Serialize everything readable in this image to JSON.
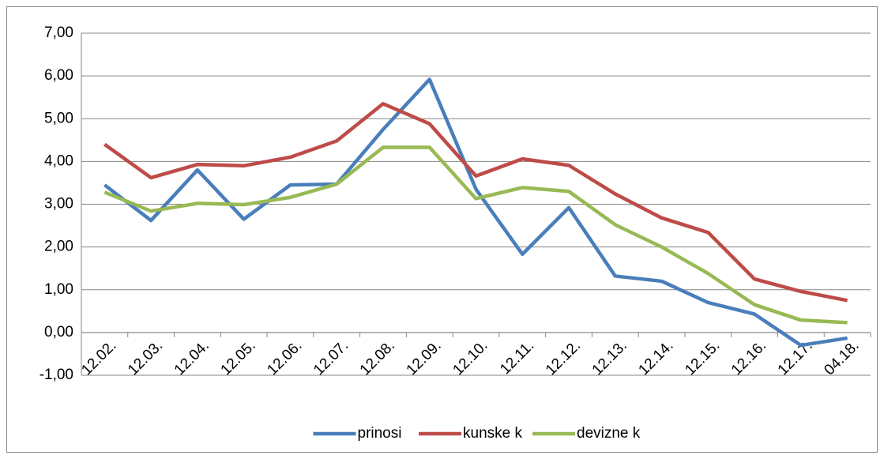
{
  "chart_data": {
    "type": "line",
    "categories": [
      "12.02.",
      "12.03.",
      "12.04.",
      "12.05.",
      "12.06.",
      "12.07.",
      "12.08.",
      "12.09.",
      "12.10.",
      "12.11.",
      "12.12.",
      "12.13.",
      "12.14.",
      "12.15.",
      "12.16.",
      "12.17.",
      "04.18."
    ],
    "series": [
      {
        "name": "prinosi",
        "color": "#4a7ebb",
        "values": [
          3.45,
          2.62,
          3.8,
          2.65,
          3.45,
          3.47,
          4.75,
          5.92,
          3.35,
          1.83,
          2.92,
          1.32,
          1.2,
          0.7,
          0.43,
          -0.3,
          -0.13
        ]
      },
      {
        "name": "kunske k",
        "color": "#be4b48",
        "values": [
          4.4,
          3.62,
          3.93,
          3.9,
          4.1,
          4.48,
          5.35,
          4.88,
          3.66,
          4.06,
          3.91,
          3.24,
          2.68,
          2.34,
          1.25,
          0.96,
          0.75
        ]
      },
      {
        "name": "devizne k",
        "color": "#98b954",
        "values": [
          3.28,
          2.84,
          3.02,
          2.99,
          3.16,
          3.47,
          4.33,
          4.33,
          3.13,
          3.39,
          3.3,
          2.52,
          2.0,
          1.38,
          0.65,
          0.29,
          0.23
        ]
      }
    ],
    "ylim": [
      -1,
      7
    ],
    "yticks": [
      {
        "value": -1,
        "label": "-1,00"
      },
      {
        "value": 0,
        "label": "0,00"
      },
      {
        "value": 1,
        "label": "1,00"
      },
      {
        "value": 2,
        "label": "2,00"
      },
      {
        "value": 3,
        "label": "3,00"
      },
      {
        "value": 4,
        "label": "4,00"
      },
      {
        "value": 5,
        "label": "5,00"
      },
      {
        "value": 6,
        "label": "6,00"
      },
      {
        "value": 7,
        "label": "7,00"
      }
    ],
    "grid": true,
    "legend": "bottom"
  }
}
